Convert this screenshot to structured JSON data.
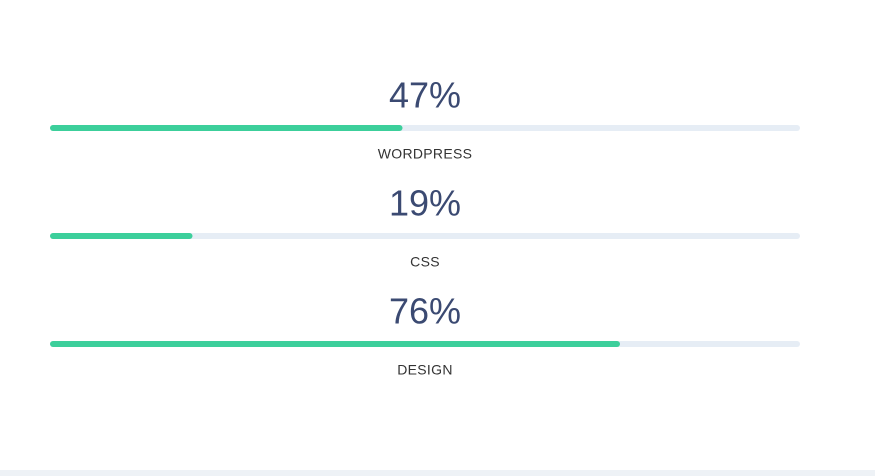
{
  "chart_data": {
    "type": "progress",
    "categories": [
      "WORDPRESS",
      "CSS",
      "DESIGN"
    ],
    "values": [
      47,
      19,
      76
    ],
    "value_labels": [
      "47%",
      "19%",
      "76%"
    ],
    "xlim": [
      0,
      100
    ],
    "color": "#3ccf9b",
    "track_color": "#e6edf5"
  }
}
